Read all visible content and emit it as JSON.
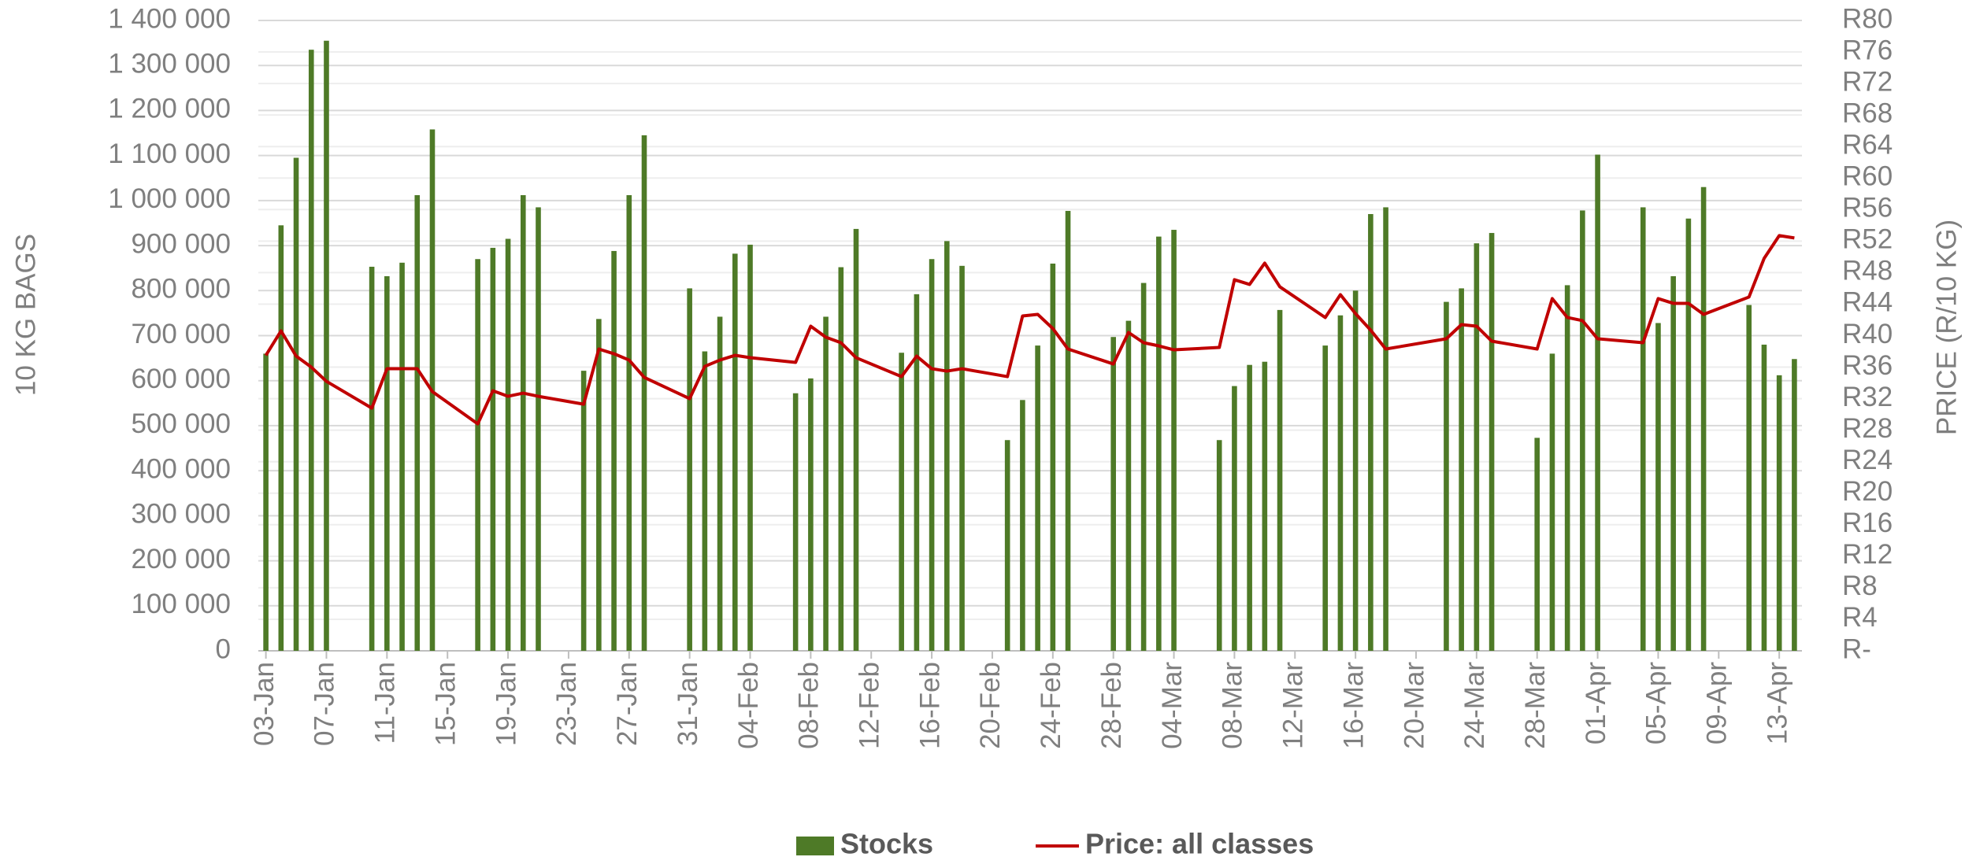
{
  "chart_data": {
    "type": "bar_line",
    "y_label": "10 KG BAGS",
    "y2_label": "PRICE (R/10 KG)",
    "x": [
      "03-Jan",
      "04-Jan",
      "05-Jan",
      "06-Jan",
      "07-Jan",
      "10-Jan",
      "11-Jan",
      "12-Jan",
      "13-Jan",
      "14-Jan",
      "17-Jan",
      "18-Jan",
      "19-Jan",
      "20-Jan",
      "21-Jan",
      "24-Jan",
      "25-Jan",
      "26-Jan",
      "27-Jan",
      "28-Jan",
      "31-Jan",
      "01-Feb",
      "02-Feb",
      "03-Feb",
      "04-Feb",
      "07-Feb",
      "08-Feb",
      "09-Feb",
      "10-Feb",
      "11-Feb",
      "14-Feb",
      "15-Feb",
      "16-Feb",
      "17-Feb",
      "18-Feb",
      "21-Feb",
      "22-Feb",
      "23-Feb",
      "24-Feb",
      "25-Feb",
      "28-Feb",
      "01-Mar",
      "02-Mar",
      "03-Mar",
      "04-Mar",
      "07-Mar",
      "08-Mar",
      "09-Mar",
      "10-Mar",
      "11-Mar",
      "14-Mar",
      "15-Mar",
      "16-Mar",
      "17-Mar",
      "18-Mar",
      "22-Mar",
      "23-Mar",
      "24-Mar",
      "25-Mar",
      "28-Mar",
      "29-Mar",
      "30-Mar",
      "31-Mar",
      "01-Apr",
      "04-Apr",
      "05-Apr",
      "06-Apr",
      "07-Apr",
      "08-Apr",
      "11-Apr",
      "12-Apr",
      "13-Apr",
      "14-Apr"
    ],
    "xlim": [
      "03-Jan",
      "14-Apr"
    ],
    "xticks": [
      "03-Jan",
      "07-Jan",
      "11-Jan",
      "15-Jan",
      "19-Jan",
      "23-Jan",
      "27-Jan",
      "31-Jan",
      "04-Feb",
      "08-Feb",
      "12-Feb",
      "16-Feb",
      "20-Feb",
      "24-Feb",
      "28-Feb",
      "04-Mar",
      "08-Mar",
      "12-Mar",
      "16-Mar",
      "20-Mar",
      "24-Mar",
      "28-Mar",
      "01-Apr",
      "05-Apr",
      "09-Apr",
      "13-Apr"
    ],
    "series": [
      {
        "name": "Stocks",
        "type": "bar",
        "color": "#4e7a27",
        "axis": "y",
        "values": [
          660000,
          945000,
          1095000,
          1335000,
          1355000,
          853000,
          832000,
          862000,
          1012000,
          1158000,
          870000,
          895000,
          915000,
          1012000,
          985000,
          622000,
          737000,
          888000,
          1012000,
          1145000,
          805000,
          665000,
          742000,
          882000,
          902000,
          572000,
          605000,
          742000,
          852000,
          937000,
          662000,
          792000,
          870000,
          910000,
          855000,
          468000,
          557000,
          678000,
          860000,
          977000,
          697000,
          733000,
          817000,
          920000,
          935000,
          468000,
          588000,
          635000,
          642000,
          757000,
          678000,
          745000,
          800000,
          970000,
          985000,
          775000,
          805000,
          905000,
          928000,
          473000,
          660000,
          812000,
          978000,
          1102000,
          985000,
          728000,
          832000,
          960000,
          1030000,
          768000,
          680000,
          612000,
          648000
        ]
      },
      {
        "name": "Price: all classes",
        "type": "line",
        "color": "#c00000",
        "axis": "y2",
        "values": [
          37.5,
          40.6,
          37.4,
          36,
          34.2,
          30.8,
          35.8,
          35.8,
          35.8,
          32.9,
          28.8,
          33,
          32.3,
          32.7,
          32.3,
          31.3,
          38.3,
          37.7,
          36.9,
          34.7,
          32,
          36.1,
          36.9,
          37.5,
          37.2,
          36.6,
          41.2,
          39.8,
          39.1,
          37.2,
          34.8,
          37.4,
          35.8,
          35.5,
          35.8,
          34.8,
          42.5,
          42.7,
          40.9,
          38.3,
          36.4,
          40.4,
          39.1,
          38.7,
          38.2,
          38.5,
          47.1,
          46.5,
          49.2,
          46.2,
          42.3,
          45.2,
          42.8,
          40.7,
          38.3,
          39.6,
          41.4,
          41.2,
          39.3,
          38.3,
          44.7,
          42.3,
          41.9,
          39.6,
          39.1,
          44.7,
          44.1,
          44.1,
          42.7,
          44.9,
          49.8,
          52.7,
          52.4
        ]
      }
    ],
    "ylim": [
      0,
      1400000
    ],
    "yticks": [
      0,
      {
        "value": 100000,
        "label": "100 000"
      },
      {
        "value": 200000,
        "label": "200 000"
      },
      {
        "value": 300000,
        "label": "300 000"
      },
      {
        "value": 400000,
        "label": "400 000"
      },
      {
        "value": 500000,
        "label": "500 000"
      },
      {
        "value": 600000,
        "label": "600 000"
      },
      {
        "value": 700000,
        "label": "700 000"
      },
      {
        "value": 800000,
        "label": "800 000"
      },
      {
        "value": 900000,
        "label": "900 000"
      },
      {
        "value": 1000000,
        "label": "1 000 000"
      },
      {
        "value": 1100000,
        "label": "1 100 000"
      },
      {
        "value": 1200000,
        "label": "1 200 000"
      },
      {
        "value": 1300000,
        "label": "1 300 000"
      },
      {
        "value": 1400000,
        "label": "1 400 000"
      }
    ],
    "y2lim": [
      0,
      80
    ],
    "y2ticks": [
      {
        "value": 0,
        "label": "R-"
      },
      {
        "value": 4,
        "label": "R4"
      },
      {
        "value": 8,
        "label": "R8"
      },
      {
        "value": 12,
        "label": "R12"
      },
      {
        "value": 16,
        "label": "R16"
      },
      {
        "value": 20,
        "label": "R20"
      },
      {
        "value": 24,
        "label": "R24"
      },
      {
        "value": 28,
        "label": "R28"
      },
      {
        "value": 32,
        "label": "R32"
      },
      {
        "value": 36,
        "label": "R36"
      },
      {
        "value": 40,
        "label": "R40"
      },
      {
        "value": 44,
        "label": "R44"
      },
      {
        "value": 48,
        "label": "R48"
      },
      {
        "value": 52,
        "label": "R52"
      },
      {
        "value": 56,
        "label": "R56"
      },
      {
        "value": 60,
        "label": "R60"
      },
      {
        "value": 64,
        "label": "R64"
      },
      {
        "value": 68,
        "label": "R68"
      },
      {
        "value": 72,
        "label": "R72"
      },
      {
        "value": 76,
        "label": "R76"
      },
      {
        "value": 80,
        "label": "R80"
      }
    ],
    "grid": true,
    "legend": "bottom"
  }
}
